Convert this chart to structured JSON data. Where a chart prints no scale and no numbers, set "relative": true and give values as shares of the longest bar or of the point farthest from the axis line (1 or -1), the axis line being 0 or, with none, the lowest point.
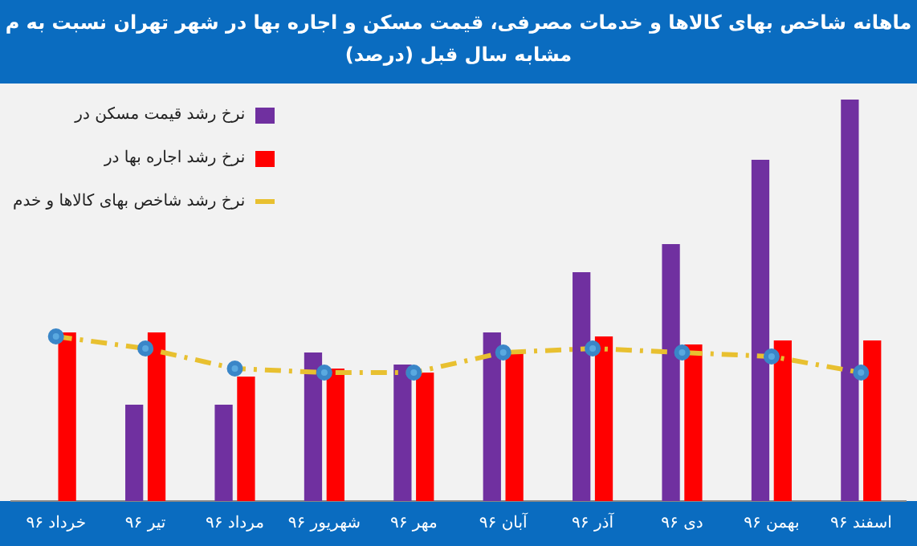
{
  "chart_data": {
    "type": "bar",
    "title": "ماهانه شاخص بهای کالاها و خدمات مصرفی، قیمت مسکن و اجاره بها در شهر تهران نسبت به م",
    "subtitle": "مشابه سال قبل (درصد)",
    "relative": true,
    "grid": false,
    "legend": "top left",
    "marker": "circle",
    "categories": [
      "خرداد ۹۶",
      "تیر ۹۶",
      "مرداد ۹۶",
      "شهریور ۹۶",
      "مهر ۹۶",
      "آبان ۹۶",
      "آذر ۹۶",
      "دی ۹۶",
      "بهمن ۹۶",
      "اسفند ۹۶"
    ],
    "series": [
      {
        "name": "نرخ رشد قیمت مسکن در",
        "color": "#7030a0",
        "values": [
          null,
          0.24,
          0.24,
          0.37,
          0.34,
          0.42,
          0.57,
          0.64,
          0.85,
          1
        ]
      },
      {
        "name": "نرخ رشد اجاره بها در",
        "color": "#ff0000",
        "values": [
          0.42,
          0.42,
          0.31,
          0.33,
          0.32,
          0.37,
          0.41,
          0.39,
          0.4,
          0.4
        ]
      },
      {
        "name": "نرخ رشد شاخص بهای کالاها و خدم",
        "type": "line",
        "line_style": "dashed",
        "color": "#e8c030",
        "values": [
          0.41,
          0.38,
          0.33,
          0.32,
          0.32,
          0.37,
          0.38,
          0.37,
          0.36,
          0.32
        ]
      }
    ]
  }
}
